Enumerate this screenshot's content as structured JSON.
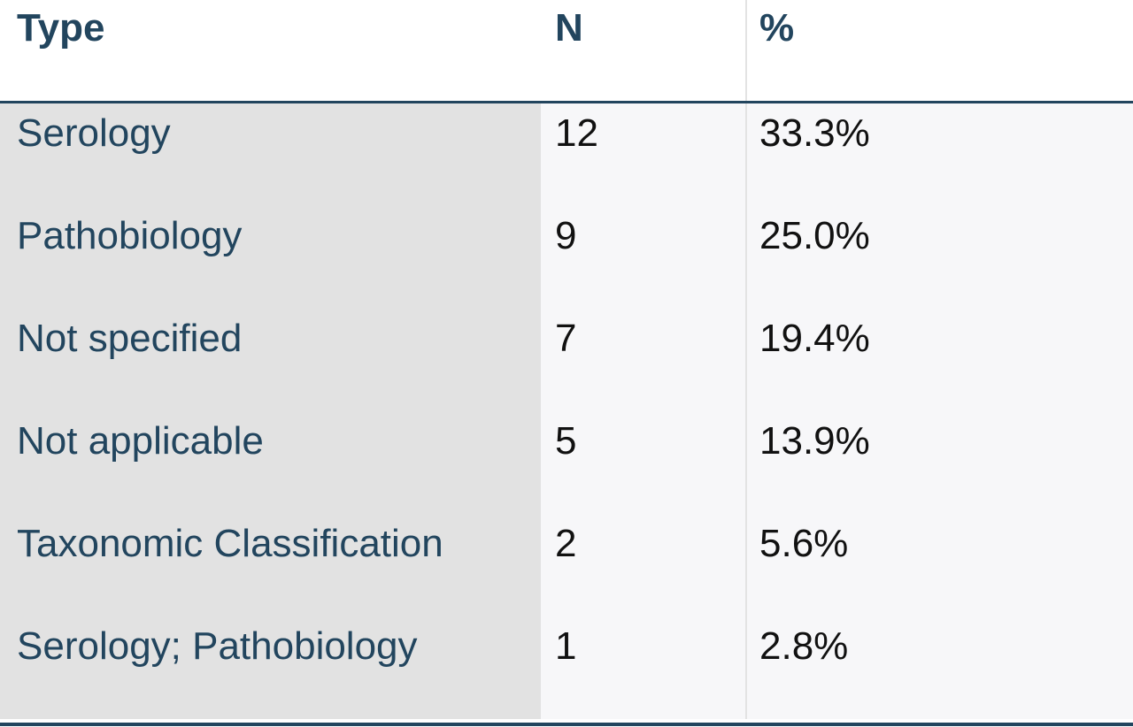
{
  "chart_data": {
    "type": "table",
    "columns": [
      "Type",
      "N",
      "%"
    ],
    "rows": [
      {
        "type": "Serology",
        "n": "12",
        "pct": "33.3%"
      },
      {
        "type": "Pathobiology",
        "n": "9",
        "pct": "25.0%"
      },
      {
        "type": "Not specified",
        "n": "7",
        "pct": "19.4%"
      },
      {
        "type": "Not applicable",
        "n": "5",
        "pct": "13.9%"
      },
      {
        "type": "Taxonomic Classification",
        "n": "2",
        "pct": "5.6%"
      },
      {
        "type": "Serology; Pathobiology",
        "n": "1",
        "pct": "2.8%"
      }
    ],
    "colors": {
      "header_text": "#22455e",
      "type_column_bg": "#e2e2e2",
      "value_columns_bg": "#f7f7f9"
    }
  }
}
